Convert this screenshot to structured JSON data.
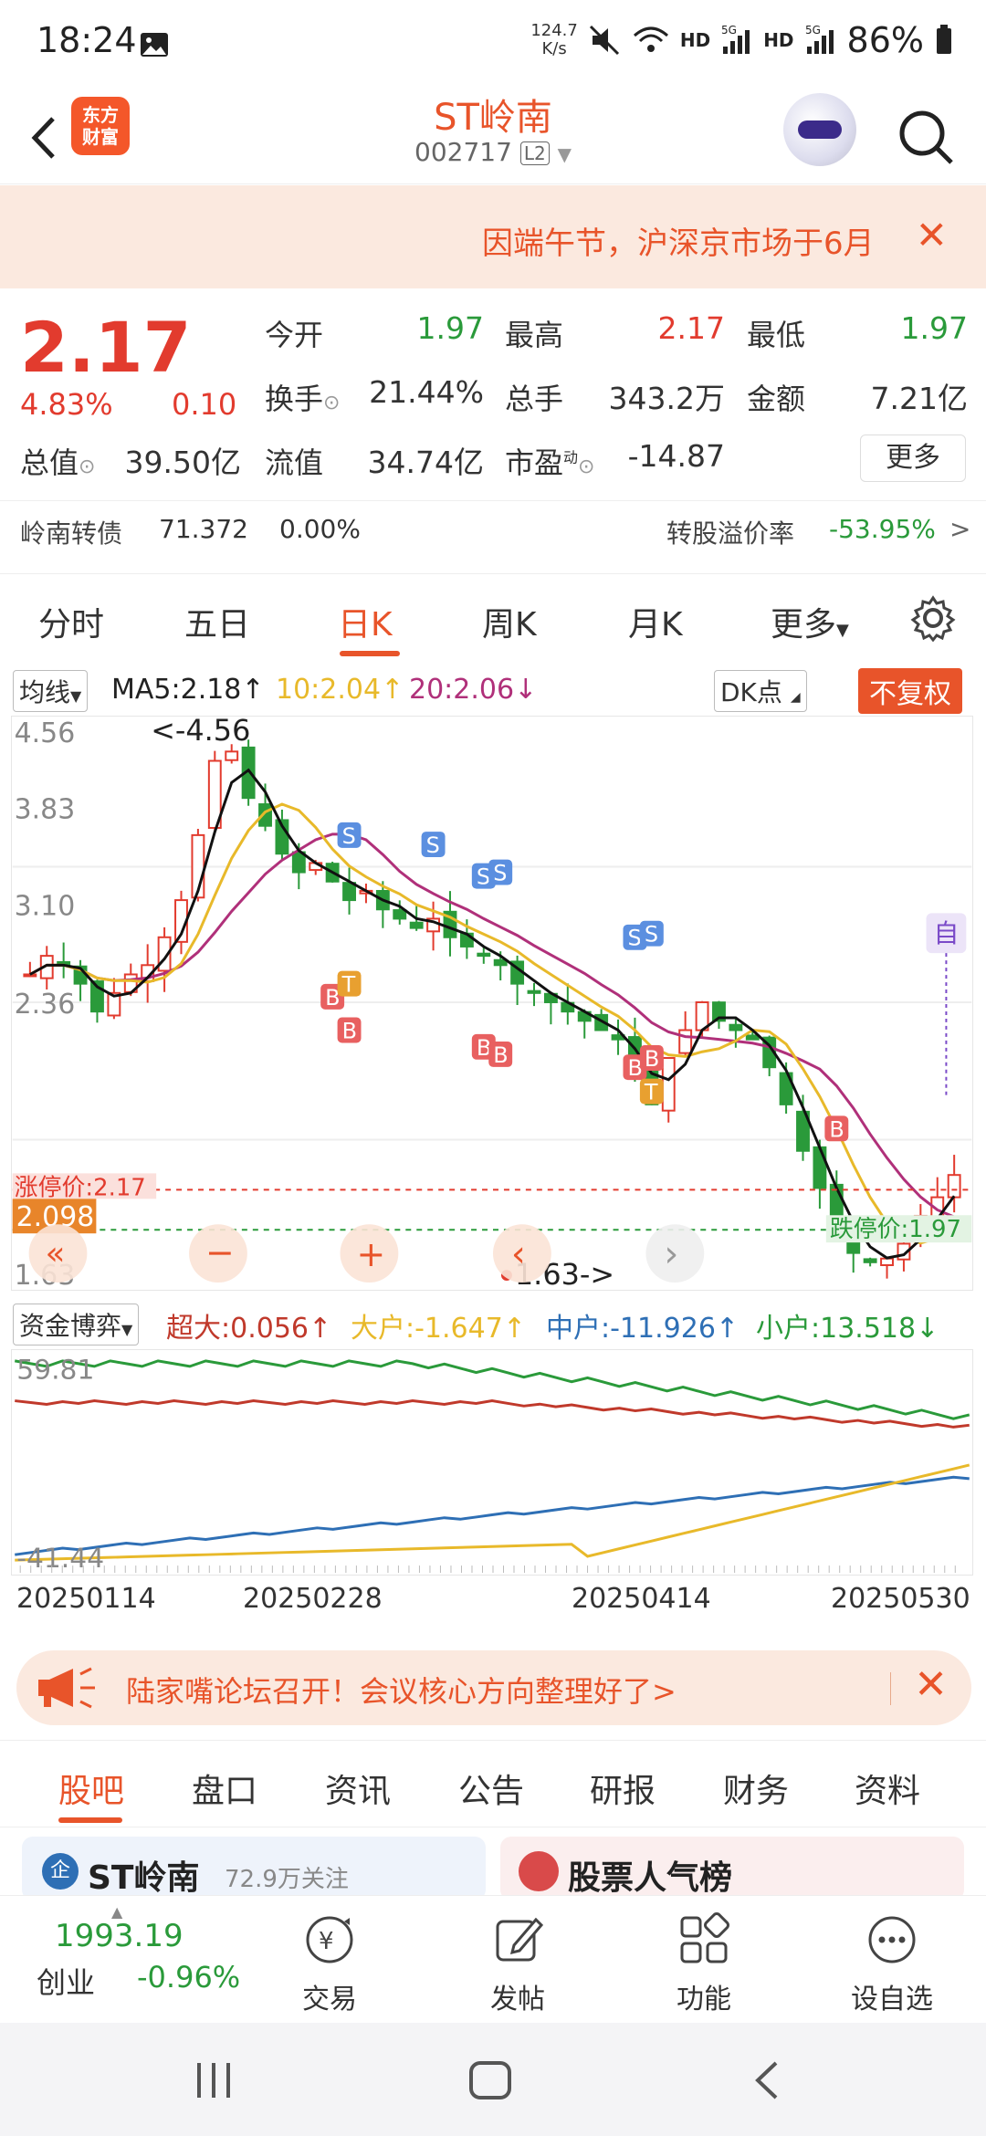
{
  "status_bar": {
    "time": "18:24",
    "speed": "124.7",
    "speed_unit": "K/s",
    "battery": "86%",
    "hd1": "HD",
    "net1": "5G",
    "hd2": "HD",
    "net2": "5G"
  },
  "header": {
    "logo_line1": "东方",
    "logo_line2": "财富",
    "title": "ST岭南",
    "code": "002717",
    "badge": "L2"
  },
  "notice": {
    "text": "因端午节，沪深京市场于6月"
  },
  "quote": {
    "price": "2.17",
    "pct": "4.83%",
    "change": "0.10",
    "open_label": "今开",
    "open": "1.97",
    "high_label": "最高",
    "high": "2.17",
    "low_label": "最低",
    "low": "1.97",
    "turnover_label": "换手",
    "turnover": "21.44%",
    "volume_label": "总手",
    "volume": "343.2万",
    "amount_label": "金额",
    "amount": "7.21亿",
    "mcap_label": "总值",
    "mcap": "39.50亿",
    "float_label": "流值",
    "float": "34.74亿",
    "pe_label": "市盈",
    "pe_sup": "动",
    "pe": "-14.87",
    "more_label": "更多"
  },
  "bond": {
    "name": "岭南转债",
    "price": "71.372",
    "pct": "0.00%",
    "premium_label": "转股溢价率",
    "premium": "-53.95%"
  },
  "tabs": [
    "分时",
    "五日",
    "日K",
    "周K",
    "月K",
    "更多"
  ],
  "indicator": {
    "select": "均线",
    "ma5": "MA5:2.18↑",
    "ma10": "10:2.04↑",
    "ma20": "20:2.06↓",
    "dk": "DK点",
    "restore": "不复权"
  },
  "chart_data": [
    {
      "type": "candlestick",
      "y_ticks": [
        "4.56",
        "3.83",
        "3.10",
        "2.36",
        "1.63"
      ],
      "ylim": [
        1.63,
        4.56
      ],
      "high_marker": "<-4.56",
      "low_marker": "1.63->",
      "limit_up_label": "涨停价:2.17",
      "limit_down_label": "跌停价:1.97",
      "current_tag": "2.098",
      "controls": [
        "«",
        "−",
        "+",
        "‹",
        "›"
      ],
      "flag_self": "自",
      "trend": [
        3.25,
        3.35,
        3.3,
        3.2,
        3.05,
        3.15,
        3.25,
        3.3,
        3.45,
        3.65,
        4.0,
        4.4,
        4.45,
        4.2,
        4.05,
        3.9,
        3.8,
        3.85,
        3.75,
        3.65,
        3.7,
        3.6,
        3.55,
        3.5,
        3.55,
        3.45,
        3.4,
        3.35,
        3.3,
        3.2,
        3.15,
        3.1,
        3.05,
        3.0,
        2.95,
        2.9,
        2.7,
        2.55,
        2.8,
        2.95,
        3.1,
        3.0,
        2.95,
        2.9,
        2.75,
        2.55,
        2.3,
        2.1,
        1.9,
        1.75,
        1.7,
        1.72,
        1.8,
        1.95,
        2.05,
        2.17
      ]
    },
    {
      "type": "line",
      "y_ticks": [
        "59.81",
        "-41.44"
      ],
      "ylim": [
        -41.44,
        59.81
      ],
      "x_ticks": [
        "20250114",
        "20250228",
        "20250414",
        "20250530"
      ],
      "series": [
        {
          "name": "超大",
          "color": "#c0392b"
        },
        {
          "name": "大户",
          "color": "#e8b92a"
        },
        {
          "name": "中户",
          "color": "#2e6fb5"
        },
        {
          "name": "小户",
          "color": "#2a9a3a"
        }
      ]
    }
  ],
  "fund": {
    "select": "资金博弈",
    "super": "超大:0.056↑",
    "big": "大户:-1.647↑",
    "mid": "中户:-11.926↑",
    "small": "小户:13.518↓"
  },
  "ad": {
    "text": "陆家嘴论坛召开！会议核心方向整理好了>"
  },
  "subtabs": [
    "股吧",
    "盘口",
    "资讯",
    "公告",
    "研报",
    "财务",
    "资料"
  ],
  "cards": {
    "left": "ST岭南",
    "left_sub": "72.9万关注",
    "right": "股票人气榜"
  },
  "bottom": {
    "index_value": "1993.19",
    "index_name": "创业",
    "index_pct": "-0.96%",
    "trade": "交易",
    "post": "发帖",
    "func": "功能",
    "watch": "设自选"
  }
}
